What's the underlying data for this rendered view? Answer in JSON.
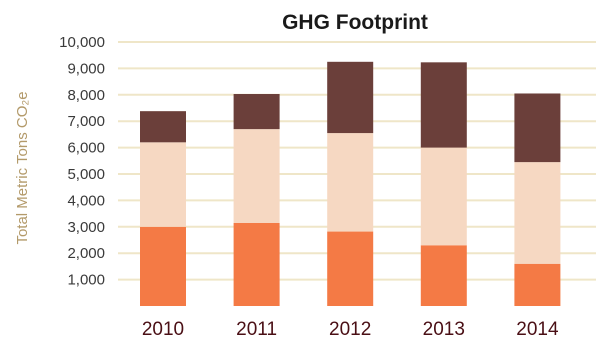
{
  "chart_data": {
    "type": "bar",
    "stacked": true,
    "title": "GHG Footprint",
    "ylabel": "Total Metric Tons CO₂e",
    "xlabel": "",
    "categories": [
      "2010",
      "2011",
      "2012",
      "2013",
      "2014"
    ],
    "ylim": [
      0,
      10000
    ],
    "yticks": [
      1000,
      2000,
      3000,
      4000,
      5000,
      6000,
      7000,
      8000,
      9000,
      10000
    ],
    "ytick_labels": [
      "1,000",
      "2,000",
      "3,000",
      "4,000",
      "5,000",
      "6,000",
      "7,000",
      "8,000",
      "9,000",
      "10,000"
    ],
    "grid": true,
    "legend": "none",
    "series": [
      {
        "color": "#f47a45",
        "values": [
          3000,
          3150,
          2820,
          2300,
          1600
        ]
      },
      {
        "color": "#f6d8c2",
        "values": [
          3200,
          3550,
          3730,
          3700,
          3850
        ]
      },
      {
        "color": "#6b3f3a",
        "values": [
          1180,
          1330,
          2700,
          3230,
          2600
        ]
      }
    ],
    "colors": {
      "grid": "#efe6c8",
      "ylabel": "#b39a6a",
      "xtick": "#4a0f15"
    }
  }
}
